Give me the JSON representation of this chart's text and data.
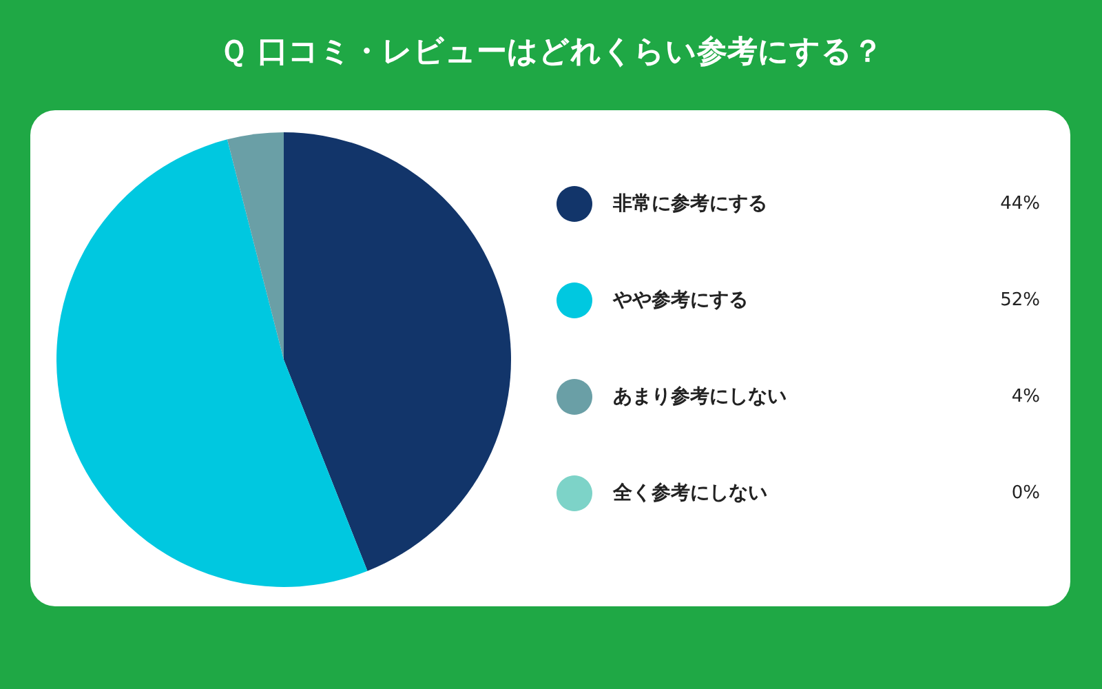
{
  "chart_data": {
    "type": "pie",
    "title": "Ｑ 口コミ・レビューはどれくらい参考にする？",
    "categories": [
      "非常に参考にする",
      "やや参考にする",
      "あまり参考にしない",
      "全く参考にしない"
    ],
    "values": [
      44,
      52,
      4,
      0
    ],
    "value_labels": [
      "44%",
      "52%",
      "4%",
      "0%"
    ],
    "colors": [
      "#12356a",
      "#00c8e0",
      "#6a9fa6",
      "#7dd3c8"
    ],
    "legend": "right"
  }
}
